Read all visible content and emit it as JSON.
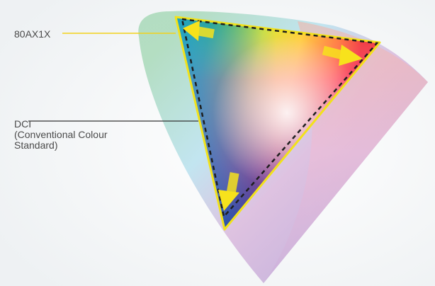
{
  "labels": {
    "model": "80AX1X",
    "reference": [
      "DCI",
      "(Conventional Colour",
      "Standard)"
    ]
  },
  "colors": {
    "model_outline": "#f2e21a",
    "reference_outline": "#1e1e1e",
    "arrow": "#f7e21c",
    "leader_model": "#f2d21a",
    "leader_reference": "#333333"
  }
}
